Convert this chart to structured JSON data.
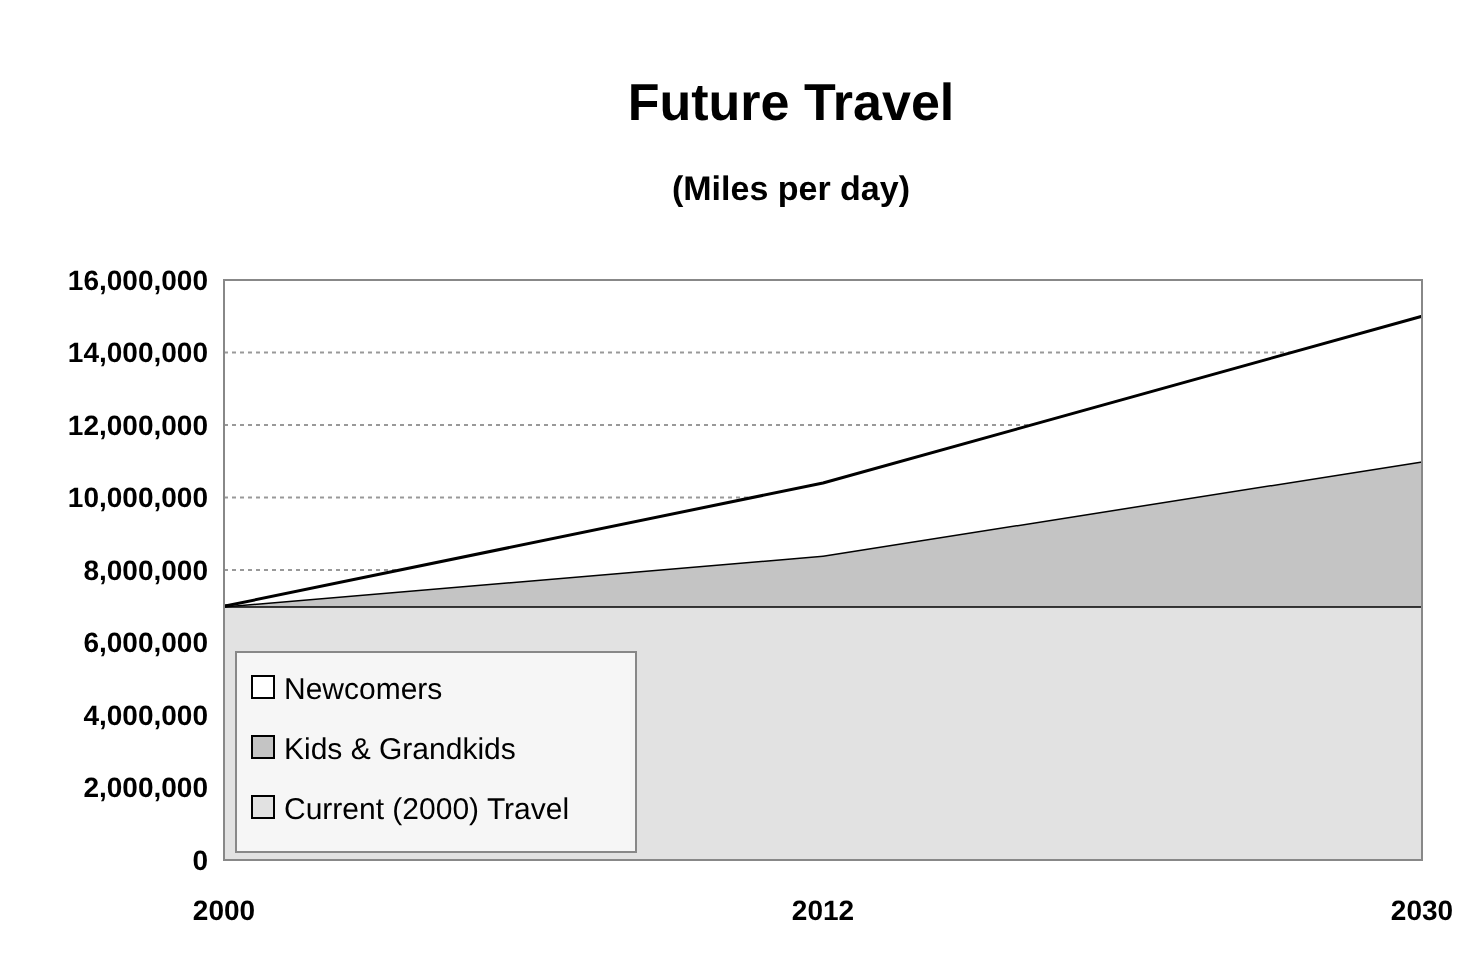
{
  "chart_data": {
    "type": "area",
    "title": "Future Travel",
    "subtitle": "(Miles per day)",
    "categories": [
      "2000",
      "2012",
      "2030"
    ],
    "stacked": true,
    "ylim": [
      0,
      16000000
    ],
    "yticks": [
      {
        "value": 0,
        "label": "0"
      },
      {
        "value": 2000000,
        "label": "2,000,000"
      },
      {
        "value": 4000000,
        "label": "4,000,000"
      },
      {
        "value": 6000000,
        "label": "6,000,000"
      },
      {
        "value": 8000000,
        "label": "8,000,000"
      },
      {
        "value": 10000000,
        "label": "10,000,000"
      },
      {
        "value": 12000000,
        "label": "12,000,000"
      },
      {
        "value": 14000000,
        "label": "14,000,000"
      },
      {
        "value": 16000000,
        "label": "16,000,000"
      }
    ],
    "grid": "y",
    "legend": "bottom left",
    "series": [
      {
        "name": "Current (2000) Travel",
        "color": "#e2e2e2",
        "values": [
          7000000,
          7000000,
          7000000
        ]
      },
      {
        "name": "Kids & Grandkids",
        "color": "#c4c4c4",
        "values": [
          0,
          1400000,
          4000000
        ]
      },
      {
        "name": "Newcomers",
        "color": "#ffffff",
        "values": [
          0,
          2000000,
          4000000
        ]
      }
    ]
  }
}
